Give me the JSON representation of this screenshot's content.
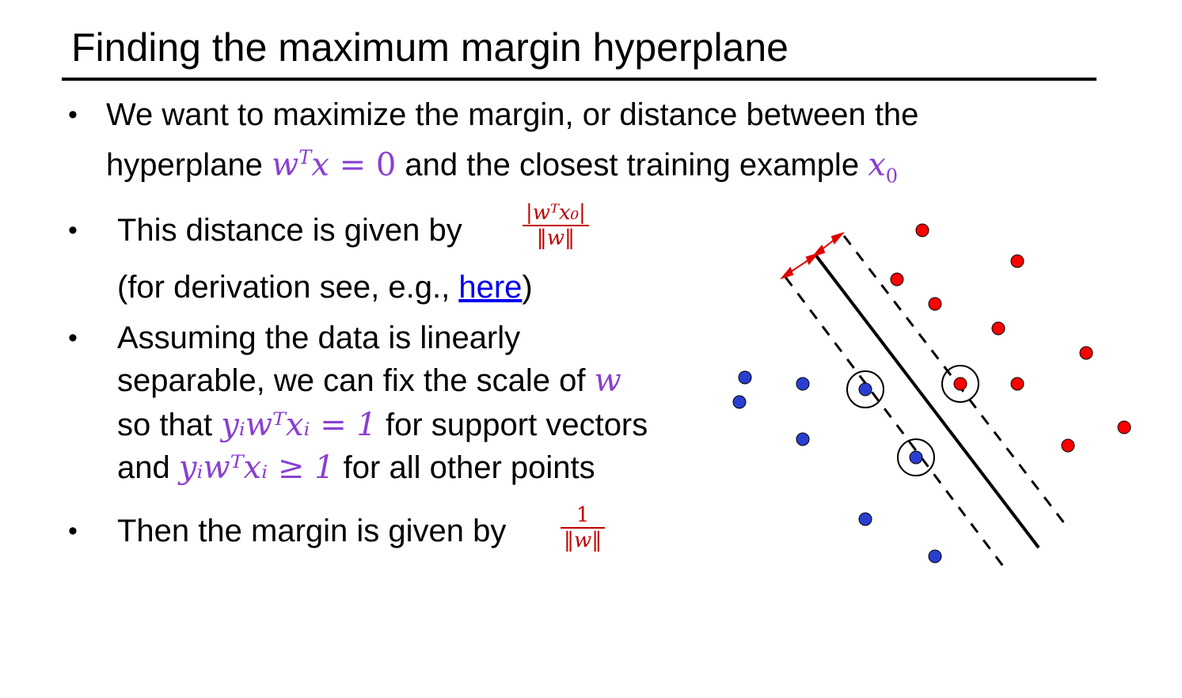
{
  "title": "Finding the maximum margin hyperplane",
  "bullet_symbol": "•",
  "b1": {
    "line1": "We want to maximize the margin, or distance between the",
    "t_a": "hyperplane ",
    "m_w": "w",
    "m_T": "T",
    "m_x": "x",
    "m_eq0": " = 0",
    "t_b": " and the closest training example ",
    "m_x0": "x",
    "m_0": "0"
  },
  "b2": {
    "t_a": "This distance is given by",
    "frac_num": "|wᵀx₀|",
    "frac_den": "‖w‖",
    "t_b": "(for derivation see, e.g., ",
    "link": "here",
    "t_c": ")"
  },
  "b3": {
    "line1": "Assuming the data is linearly",
    "line2a": "separable, we can fix the scale of ",
    "m_w": "w",
    "line3a": "so that ",
    "m_eq1": "yᵢwᵀxᵢ = 1",
    "line3b": " for support vectors",
    "line4a": "and ",
    "m_ge1": "yᵢwᵀxᵢ ≥ 1",
    "line4b": " for all other points"
  },
  "b4": {
    "t_a": "Then the margin is given by",
    "frac_num": "1",
    "frac_den": "‖w‖"
  },
  "colors": {
    "accent_math": "#8a3fd1",
    "formula": "#c00000",
    "link": "#0000ee",
    "positive": "#ff0000",
    "negative": "#2a3fd1"
  }
}
